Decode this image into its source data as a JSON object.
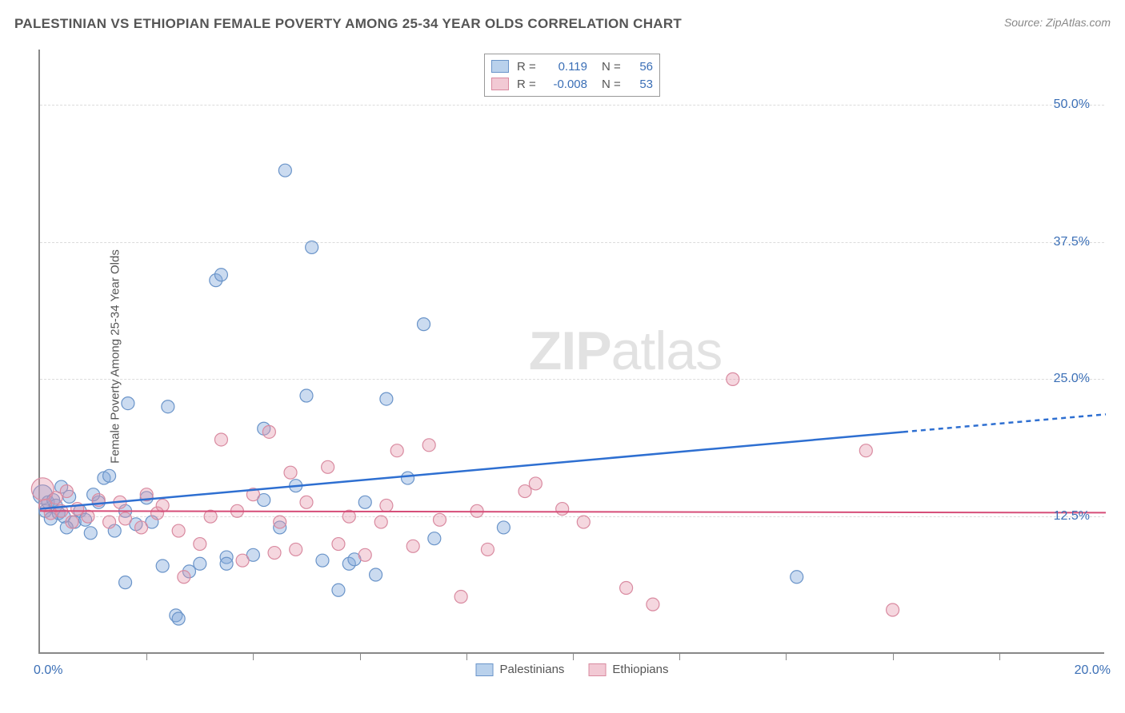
{
  "title": "PALESTINIAN VS ETHIOPIAN FEMALE POVERTY AMONG 25-34 YEAR OLDS CORRELATION CHART",
  "source_label": "Source: ZipAtlas.com",
  "watermark_bold": "ZIP",
  "watermark_light": "atlas",
  "y_axis_label": "Female Poverty Among 25-34 Year Olds",
  "chart": {
    "type": "scatter",
    "x_domain": [
      0,
      20
    ],
    "y_domain": [
      0,
      55
    ],
    "x_min_label": "0.0%",
    "x_max_label": "20.0%",
    "x_tick_positions": [
      2,
      4,
      6,
      8,
      10,
      12,
      14,
      16,
      18
    ],
    "y_grid": [
      {
        "value": 12.5,
        "label": "12.5%"
      },
      {
        "value": 25.0,
        "label": "25.0%"
      },
      {
        "value": 37.5,
        "label": "37.5%"
      },
      {
        "value": 50.0,
        "label": "50.0%"
      }
    ],
    "background_color": "#ffffff",
    "grid_color": "#dcdcdc",
    "axis_color": "#888888",
    "series": [
      {
        "id": "palestinians",
        "label": "Palestinians",
        "r_label": "R =",
        "r_value": "0.119",
        "n_label": "N =",
        "n_value": "56",
        "fill": "rgba(130,170,220,0.42)",
        "stroke": "#6a94c9",
        "swatch_fill": "#b9d1ec",
        "swatch_stroke": "#6a94c9",
        "line_color": "#2e6fd1",
        "line_width": 2.5,
        "marker_radius": 8,
        "trend": {
          "x1": 0,
          "y1": 13.2,
          "x2_solid": 16.2,
          "y2_solid": 20.2,
          "x2_dash": 20,
          "y2_dash": 21.8
        },
        "points": [
          {
            "x": 0.05,
            "y": 14.5,
            "r": 12
          },
          {
            "x": 0.1,
            "y": 13.0
          },
          {
            "x": 0.15,
            "y": 13.8
          },
          {
            "x": 0.2,
            "y": 12.3
          },
          {
            "x": 0.25,
            "y": 14.0
          },
          {
            "x": 0.3,
            "y": 13.5
          },
          {
            "x": 0.35,
            "y": 12.8
          },
          {
            "x": 0.4,
            "y": 15.2
          },
          {
            "x": 0.45,
            "y": 12.5
          },
          {
            "x": 0.55,
            "y": 14.3
          },
          {
            "x": 0.65,
            "y": 12.0
          },
          {
            "x": 0.75,
            "y": 13.0
          },
          {
            "x": 0.85,
            "y": 12.2
          },
          {
            "x": 0.95,
            "y": 11.0
          },
          {
            "x": 1.1,
            "y": 13.8
          },
          {
            "x": 1.2,
            "y": 16.0
          },
          {
            "x": 1.3,
            "y": 16.2
          },
          {
            "x": 1.6,
            "y": 13.0
          },
          {
            "x": 1.6,
            "y": 6.5
          },
          {
            "x": 1.65,
            "y": 22.8
          },
          {
            "x": 2.1,
            "y": 12.0
          },
          {
            "x": 2.3,
            "y": 8.0
          },
          {
            "x": 2.4,
            "y": 22.5
          },
          {
            "x": 2.55,
            "y": 3.5
          },
          {
            "x": 2.6,
            "y": 3.2
          },
          {
            "x": 2.8,
            "y": 7.5
          },
          {
            "x": 3.0,
            "y": 8.2
          },
          {
            "x": 3.3,
            "y": 34.0
          },
          {
            "x": 3.4,
            "y": 34.5
          },
          {
            "x": 3.5,
            "y": 8.8
          },
          {
            "x": 3.5,
            "y": 8.2
          },
          {
            "x": 4.0,
            "y": 9.0
          },
          {
            "x": 4.2,
            "y": 20.5
          },
          {
            "x": 4.2,
            "y": 14.0
          },
          {
            "x": 4.6,
            "y": 44.0
          },
          {
            "x": 4.8,
            "y": 15.3
          },
          {
            "x": 5.0,
            "y": 23.5
          },
          {
            "x": 5.1,
            "y": 37.0
          },
          {
            "x": 5.3,
            "y": 8.5
          },
          {
            "x": 5.6,
            "y": 5.8
          },
          {
            "x": 5.8,
            "y": 8.2
          },
          {
            "x": 5.9,
            "y": 8.6
          },
          {
            "x": 6.1,
            "y": 13.8
          },
          {
            "x": 6.3,
            "y": 7.2
          },
          {
            "x": 6.5,
            "y": 23.2
          },
          {
            "x": 6.9,
            "y": 16.0
          },
          {
            "x": 7.2,
            "y": 30.0
          },
          {
            "x": 7.4,
            "y": 10.5
          },
          {
            "x": 8.7,
            "y": 11.5
          },
          {
            "x": 14.2,
            "y": 7.0
          },
          {
            "x": 0.5,
            "y": 11.5
          },
          {
            "x": 1.0,
            "y": 14.5
          },
          {
            "x": 1.4,
            "y": 11.2
          },
          {
            "x": 1.8,
            "y": 11.8
          },
          {
            "x": 2.0,
            "y": 14.2
          },
          {
            "x": 4.5,
            "y": 11.5
          }
        ]
      },
      {
        "id": "ethiopians",
        "label": "Ethiopians",
        "r_label": "R =",
        "r_value": "-0.008",
        "n_label": "N =",
        "n_value": "53",
        "fill": "rgba(230,150,170,0.38)",
        "stroke": "#d98aa0",
        "swatch_fill": "#f2c9d4",
        "swatch_stroke": "#d98aa0",
        "line_color": "#d64d78",
        "line_width": 2,
        "marker_radius": 8,
        "trend": {
          "x1": 0,
          "y1": 13.0,
          "x2_solid": 20,
          "y2_solid": 12.85,
          "x2_dash": 20,
          "y2_dash": 12.85
        },
        "points": [
          {
            "x": 0.05,
            "y": 15.0,
            "r": 14
          },
          {
            "x": 0.1,
            "y": 13.5
          },
          {
            "x": 0.2,
            "y": 12.8
          },
          {
            "x": 0.3,
            "y": 14.2
          },
          {
            "x": 0.4,
            "y": 13.0
          },
          {
            "x": 0.5,
            "y": 14.8
          },
          {
            "x": 0.7,
            "y": 13.2
          },
          {
            "x": 0.9,
            "y": 12.5
          },
          {
            "x": 1.1,
            "y": 14.0
          },
          {
            "x": 1.3,
            "y": 12.0
          },
          {
            "x": 1.6,
            "y": 12.3
          },
          {
            "x": 1.9,
            "y": 11.5
          },
          {
            "x": 2.2,
            "y": 12.8
          },
          {
            "x": 2.3,
            "y": 13.5
          },
          {
            "x": 2.6,
            "y": 11.2
          },
          {
            "x": 2.7,
            "y": 7.0
          },
          {
            "x": 3.2,
            "y": 12.5
          },
          {
            "x": 3.4,
            "y": 19.5
          },
          {
            "x": 3.7,
            "y": 13.0
          },
          {
            "x": 3.8,
            "y": 8.5
          },
          {
            "x": 4.3,
            "y": 20.2
          },
          {
            "x": 4.4,
            "y": 9.2
          },
          {
            "x": 4.5,
            "y": 12.0
          },
          {
            "x": 4.7,
            "y": 16.5
          },
          {
            "x": 4.8,
            "y": 9.5
          },
          {
            "x": 5.0,
            "y": 13.8
          },
          {
            "x": 5.4,
            "y": 17.0
          },
          {
            "x": 5.6,
            "y": 10.0
          },
          {
            "x": 5.8,
            "y": 12.5
          },
          {
            "x": 6.1,
            "y": 9.0
          },
          {
            "x": 6.4,
            "y": 12.0
          },
          {
            "x": 6.5,
            "y": 13.5
          },
          {
            "x": 6.7,
            "y": 18.5
          },
          {
            "x": 7.0,
            "y": 9.8
          },
          {
            "x": 7.3,
            "y": 19.0
          },
          {
            "x": 7.5,
            "y": 12.2
          },
          {
            "x": 7.9,
            "y": 5.2
          },
          {
            "x": 8.2,
            "y": 13.0
          },
          {
            "x": 8.4,
            "y": 9.5
          },
          {
            "x": 9.1,
            "y": 14.8
          },
          {
            "x": 9.3,
            "y": 15.5
          },
          {
            "x": 9.8,
            "y": 13.2
          },
          {
            "x": 10.2,
            "y": 12.0
          },
          {
            "x": 11.5,
            "y": 4.5
          },
          {
            "x": 11.0,
            "y": 6.0
          },
          {
            "x": 13.0,
            "y": 25.0
          },
          {
            "x": 15.5,
            "y": 18.5
          },
          {
            "x": 16.0,
            "y": 4.0
          },
          {
            "x": 0.6,
            "y": 12.0
          },
          {
            "x": 1.5,
            "y": 13.8
          },
          {
            "x": 2.0,
            "y": 14.5
          },
          {
            "x": 3.0,
            "y": 10.0
          },
          {
            "x": 4.0,
            "y": 14.5
          }
        ]
      }
    ]
  },
  "legend_bottom": [
    {
      "label": "Palestinians",
      "fill": "#b9d1ec",
      "stroke": "#6a94c9"
    },
    {
      "label": "Ethiopians",
      "fill": "#f2c9d4",
      "stroke": "#d98aa0"
    }
  ]
}
